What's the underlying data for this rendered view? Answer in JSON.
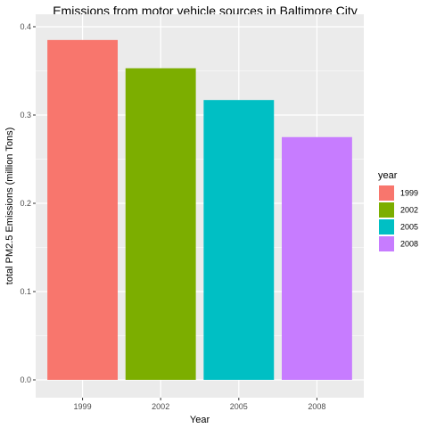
{
  "chart_data": {
    "type": "bar",
    "title": "Emissions from motor vehicle sources in Baltimore City",
    "xlabel": "Year",
    "ylabel": "total PM2.5 Emissions (million Tons)",
    "categories": [
      "1999",
      "2002",
      "2005",
      "2008"
    ],
    "values": [
      0.385,
      0.353,
      0.317,
      0.275
    ],
    "ylim": [
      0,
      0.4
    ],
    "yticks": [
      "0.0",
      "0.1",
      "0.2",
      "0.3",
      "0.4"
    ],
    "grid": true,
    "legend": {
      "title": "year",
      "position": "right",
      "entries": [
        "1999",
        "2002",
        "2005",
        "2008"
      ]
    },
    "colors": [
      "#F8766D",
      "#7CAE00",
      "#00BFC4",
      "#C77CFF"
    ],
    "panel_background": "#EBEBEB",
    "grid_color": "#FFFFFF"
  }
}
